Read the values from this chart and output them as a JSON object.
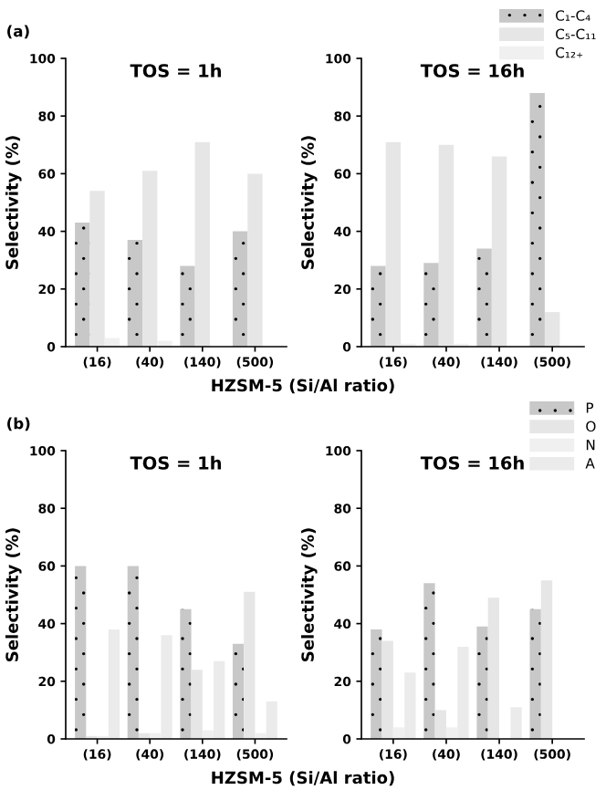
{
  "chart_data": [
    {
      "type": "bar",
      "title": "TOS = 1h",
      "ylabel": "Selectivity (%)",
      "xlabel": "HZSM-5 (Si/Al ratio)",
      "annotations": [
        "(a)"
      ],
      "categories": [
        "(16)",
        "(40)",
        "(140)",
        "(500)"
      ],
      "ylim": [
        0,
        100
      ],
      "yticks": [
        0,
        20,
        40,
        60,
        80,
        100
      ],
      "legend": false,
      "series": [
        {
          "color": "#c8c8c8",
          "values": [
            43,
            37,
            28,
            40
          ]
        },
        {
          "color": "#e6e6e6",
          "values": [
            54,
            61,
            71,
            60
          ]
        },
        {
          "color": "#f0f0f0",
          "values": [
            3,
            2,
            0,
            0
          ]
        }
      ]
    },
    {
      "type": "bar",
      "title": "TOS = 16h",
      "ylabel": "Selectivity (%)",
      "categories": [
        "(16)",
        "(40)",
        "(140)",
        "(500)"
      ],
      "ylim": [
        0,
        100
      ],
      "yticks": [
        0,
        20,
        40,
        60,
        80,
        100
      ],
      "legend": "top right",
      "series": [
        {
          "name": "C₁-C₄",
          "color": "#c8c8c8",
          "values": [
            28,
            29,
            34,
            88
          ]
        },
        {
          "name": "C₅-C₁₁",
          "color": "#e6e6e6",
          "values": [
            71,
            70,
            66,
            12
          ]
        },
        {
          "name": "C₁₂₊",
          "color": "#f0f0f0",
          "values": [
            1,
            1,
            0,
            0
          ]
        }
      ]
    },
    {
      "type": "bar",
      "title": "TOS = 1h",
      "ylabel": "Selectivity (%)",
      "xlabel": "HZSM-5 (Si/Al ratio)",
      "annotations": [
        "(b)"
      ],
      "categories": [
        "(16)",
        "(40)",
        "(140)",
        "(500)"
      ],
      "ylim": [
        0,
        100
      ],
      "yticks": [
        0,
        20,
        40,
        60,
        80,
        100
      ],
      "legend": false,
      "series": [
        {
          "color": "#c8c8c8",
          "values": [
            60,
            60,
            45,
            33
          ]
        },
        {
          "color": "#e6e6e6",
          "values": [
            1,
            2,
            24,
            51
          ]
        },
        {
          "color": "#f0f0f0",
          "values": [
            1,
            2,
            3,
            2
          ]
        },
        {
          "color": "#ebebeb",
          "values": [
            38,
            36,
            27,
            13
          ]
        }
      ]
    },
    {
      "type": "bar",
      "title": "TOS = 16h",
      "ylabel": "Selectivity (%)",
      "categories": [
        "(16)",
        "(40)",
        "(140)",
        "(500)"
      ],
      "ylim": [
        0,
        100
      ],
      "yticks": [
        0,
        20,
        40,
        60,
        80,
        100
      ],
      "legend": "top right",
      "series": [
        {
          "name": "P",
          "color": "#c8c8c8",
          "values": [
            38,
            54,
            39,
            45
          ]
        },
        {
          "name": "O",
          "color": "#e6e6e6",
          "values": [
            34,
            10,
            49,
            55
          ]
        },
        {
          "name": "N",
          "color": "#f0f0f0",
          "values": [
            4,
            4,
            0,
            0
          ]
        },
        {
          "name": "A",
          "color": "#ebebeb",
          "values": [
            23,
            32,
            11,
            0
          ]
        }
      ]
    }
  ]
}
